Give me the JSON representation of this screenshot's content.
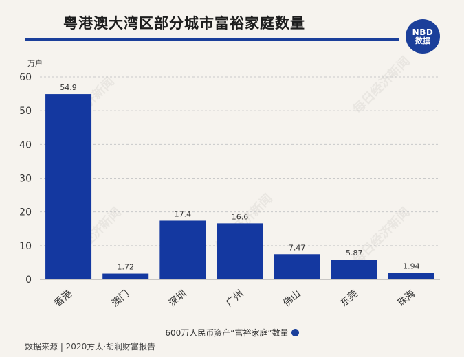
{
  "header": {
    "title": "粤港澳大湾区部分城市富裕家庭数量",
    "logo_line1": "NBD",
    "logo_line2": "数据"
  },
  "legend": {
    "label": "600万人民币资产“富裕家庭”数量"
  },
  "source": "数据来源 | 2020方太·胡润财富报告",
  "watermark": "每日经济新闻",
  "colors": {
    "bar": "#1438a0",
    "accent": "#1b3f9a"
  },
  "chart_data": {
    "type": "bar",
    "unit_label": "万户",
    "categories": [
      "香港",
      "澳门",
      "深圳",
      "广州",
      "佛山",
      "东莞",
      "珠海"
    ],
    "values": [
      54.9,
      1.72,
      17.4,
      16.6,
      7.47,
      5.87,
      1.94
    ],
    "value_labels": [
      "54.9",
      "1.72",
      "17.4",
      "16.6",
      "7.47",
      "5.87",
      "1.94"
    ],
    "ylim": [
      0,
      60
    ],
    "yticks": [
      0,
      10,
      20,
      30,
      40,
      50,
      60
    ],
    "grid": true
  }
}
